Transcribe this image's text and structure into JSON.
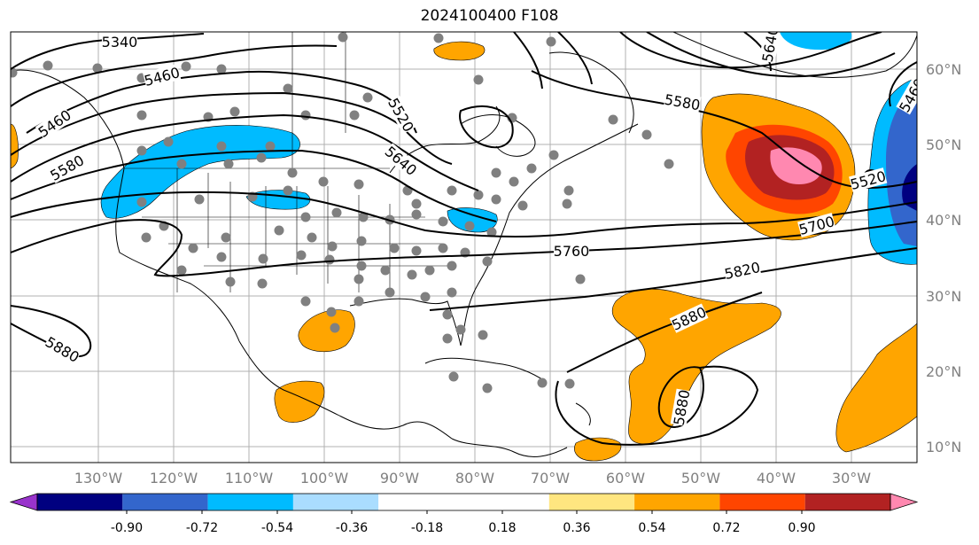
{
  "title": "2024100400 F108",
  "map": {
    "lon_ticks": [
      "130°W",
      "120°W",
      "110°W",
      "100°W",
      "90°W",
      "80°W",
      "70°W",
      "60°W",
      "50°W",
      "40°W",
      "30°W"
    ],
    "lat_ticks": [
      "60°N",
      "50°N",
      "40°N",
      "30°N",
      "20°N",
      "10°N"
    ],
    "contour_labels": [
      "5340",
      "5460",
      "5460",
      "5580",
      "5520",
      "5640",
      "5580",
      "5460",
      "5520",
      "5700",
      "5760",
      "5820",
      "5880",
      "5880",
      "5880",
      "5640"
    ],
    "grid_color": "#b0b0b0",
    "station_color": "#808080"
  },
  "colorbar": {
    "colors": [
      "#9933cc",
      "#000080",
      "#3366cc",
      "#00bbff",
      "#aaddff",
      "#ffffff",
      "#ffffff",
      "#ffe680",
      "#ffa500",
      "#ff4500",
      "#b22222",
      "#ff88b0"
    ],
    "ticks": [
      "-0.90",
      "-0.72",
      "-0.54",
      "-0.36",
      "-0.18",
      "0.18",
      "0.36",
      "0.54",
      "0.72",
      "0.90"
    ],
    "extend": "both"
  }
}
